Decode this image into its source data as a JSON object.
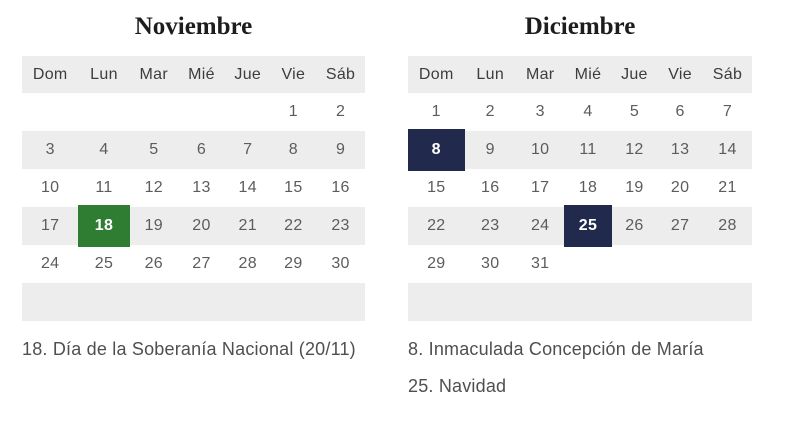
{
  "page": {
    "background": "#ffffff"
  },
  "colors": {
    "row_alt": "#ededed",
    "green_highlight": "#2e7d32",
    "navy_highlight": "#212a4d",
    "title_text": "#1d1d1d",
    "weekday_text": "#3d3d3d",
    "day_text": "#5c5c5c",
    "holiday_text": "#4f4f4f",
    "highlight_day_text": "#ffffff"
  },
  "calendars": [
    {
      "title": "Noviembre",
      "day_headers": [
        "Dom",
        "Lun",
        "Mar",
        "Mié",
        "Jue",
        "Vie",
        "Sáb"
      ],
      "weeks": [
        [
          "",
          "",
          "",
          "",
          "",
          "1",
          "2"
        ],
        [
          "3",
          "4",
          "5",
          "6",
          "7",
          "8",
          "9"
        ],
        [
          "10",
          "11",
          "12",
          "13",
          "14",
          "15",
          "16"
        ],
        [
          "17",
          "18",
          "19",
          "20",
          "21",
          "22",
          "23"
        ],
        [
          "24",
          "25",
          "26",
          "27",
          "28",
          "29",
          "30"
        ],
        [
          "",
          "",
          "",
          "",
          "",
          "",
          ""
        ]
      ],
      "highlights": [
        {
          "day": "18",
          "color_key": "green_highlight"
        }
      ],
      "holidays": [
        "18. Día de la Soberanía Nacional (20/11)"
      ]
    },
    {
      "title": "Diciembre",
      "day_headers": [
        "Dom",
        "Lun",
        "Mar",
        "Mié",
        "Jue",
        "Vie",
        "Sáb"
      ],
      "weeks": [
        [
          "1",
          "2",
          "3",
          "4",
          "5",
          "6",
          "7"
        ],
        [
          "8",
          "9",
          "10",
          "11",
          "12",
          "13",
          "14"
        ],
        [
          "15",
          "16",
          "17",
          "18",
          "19",
          "20",
          "21"
        ],
        [
          "22",
          "23",
          "24",
          "25",
          "26",
          "27",
          "28"
        ],
        [
          "29",
          "30",
          "31",
          "",
          "",
          "",
          ""
        ],
        [
          "",
          "",
          "",
          "",
          "",
          "",
          ""
        ]
      ],
      "highlights": [
        {
          "day": "8",
          "color_key": "navy_highlight"
        },
        {
          "day": "25",
          "color_key": "navy_highlight"
        }
      ],
      "holidays": [
        "8. Inmaculada Concepción de María",
        "25. Navidad"
      ]
    }
  ]
}
